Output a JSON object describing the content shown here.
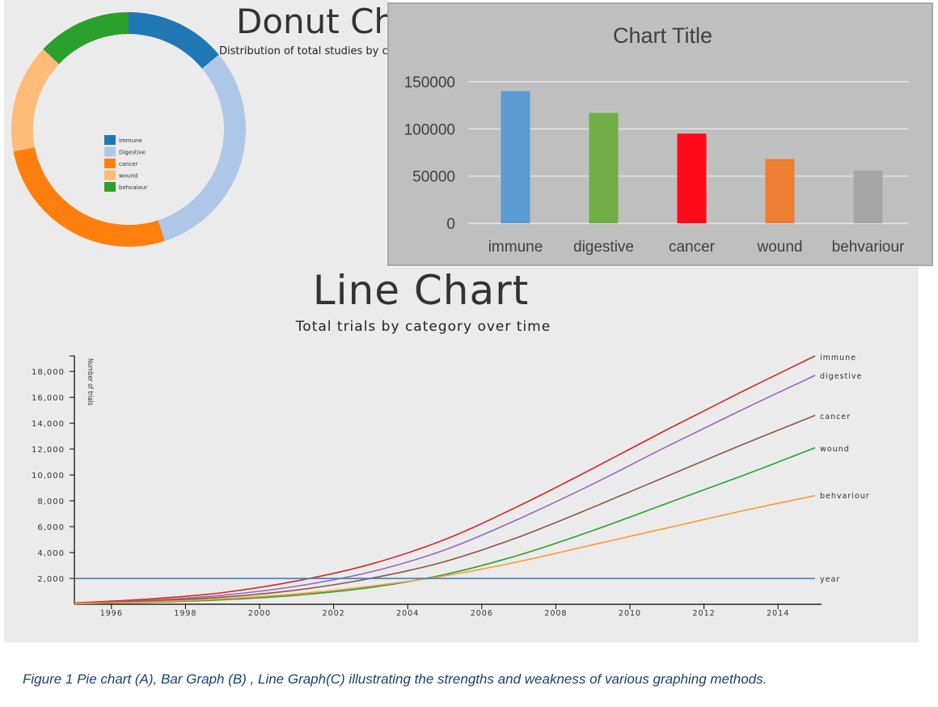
{
  "donut": {
    "title": "Donut Chart",
    "subtitle": "Distribution of total studies by category",
    "legend": [
      "immune",
      "Digestive",
      "cancer",
      "wound",
      "behvaiour"
    ]
  },
  "bar": {
    "title": "Chart Title"
  },
  "line": {
    "title": "Line Chart",
    "subtitle": "Total trials by category over time",
    "ylabel": "Number of trials"
  },
  "caption": "Figure 1 Pie chart (A), Bar Graph (B) , Line Graph(C) illustrating the strengths and weakness of various graphing methods.",
  "chart_data": [
    {
      "type": "pie",
      "variant": "donut",
      "categories": [
        "immune",
        "Digestive",
        "cancer",
        "wound",
        "behvaiour"
      ],
      "values": [
        14,
        31,
        27,
        15,
        13
      ],
      "colors": [
        "#1f77b4",
        "#aec7e8",
        "#ff7f0e",
        "#ffbb78",
        "#2ca02c"
      ],
      "legend": "center"
    },
    {
      "type": "bar",
      "title": "Chart Title",
      "categories": [
        "immune",
        "digestive",
        "cancer",
        "wound",
        "behvariour"
      ],
      "values": [
        140000,
        117000,
        95000,
        68000,
        56000
      ],
      "colors": [
        "#5b9bd5",
        "#70ad47",
        "#ff0a1a",
        "#ed7d31",
        "#a5a5a5"
      ],
      "yticks": [
        0,
        50000,
        100000,
        150000
      ],
      "ylim": [
        0,
        150000
      ],
      "grid": true
    },
    {
      "type": "line",
      "title": "Line Chart",
      "subtitle": "Total trials by category over time",
      "ylabel": "Number of trials",
      "x": [
        1995,
        1997,
        1999,
        2001,
        2003,
        2005,
        2007,
        2009,
        2011,
        2013,
        2015
      ],
      "xticks": [
        1996,
        1998,
        2000,
        2002,
        2004,
        2006,
        2008,
        2010,
        2012,
        2014
      ],
      "yticks": [
        "2,000",
        "4,000",
        "6,000",
        "8,000",
        "10,000",
        "12,000",
        "14,000",
        "16,000",
        "18,000"
      ],
      "ylim": [
        0,
        19200
      ],
      "series": [
        {
          "name": "immune",
          "color": "#d62728",
          "values": [
            100,
            400,
            900,
            1800,
            3100,
            5000,
            7600,
            10500,
            13500,
            16400,
            19200
          ]
        },
        {
          "name": "digestive",
          "color": "#9467bd",
          "values": [
            80,
            300,
            700,
            1400,
            2500,
            4200,
            6600,
            9300,
            12200,
            15000,
            17700
          ]
        },
        {
          "name": "cancer",
          "color": "#8c564b",
          "values": [
            60,
            250,
            550,
            1100,
            2000,
            3300,
            5200,
            7500,
            9900,
            12300,
            14600
          ]
        },
        {
          "name": "wound",
          "color": "#2ca02c",
          "values": [
            40,
            150,
            350,
            700,
            1300,
            2300,
            3800,
            5700,
            7800,
            9900,
            12100
          ]
        },
        {
          "name": "behvariour",
          "color": "#ff9933",
          "values": [
            40,
            180,
            420,
            800,
            1400,
            2200,
            3300,
            4600,
            5900,
            7200,
            8400
          ]
        },
        {
          "name": "year",
          "color": "#3a7ec9",
          "values": [
            2000,
            2000,
            2000,
            2000,
            2000,
            2000,
            2000,
            2000,
            2000,
            2000,
            2000
          ]
        }
      ]
    }
  ]
}
